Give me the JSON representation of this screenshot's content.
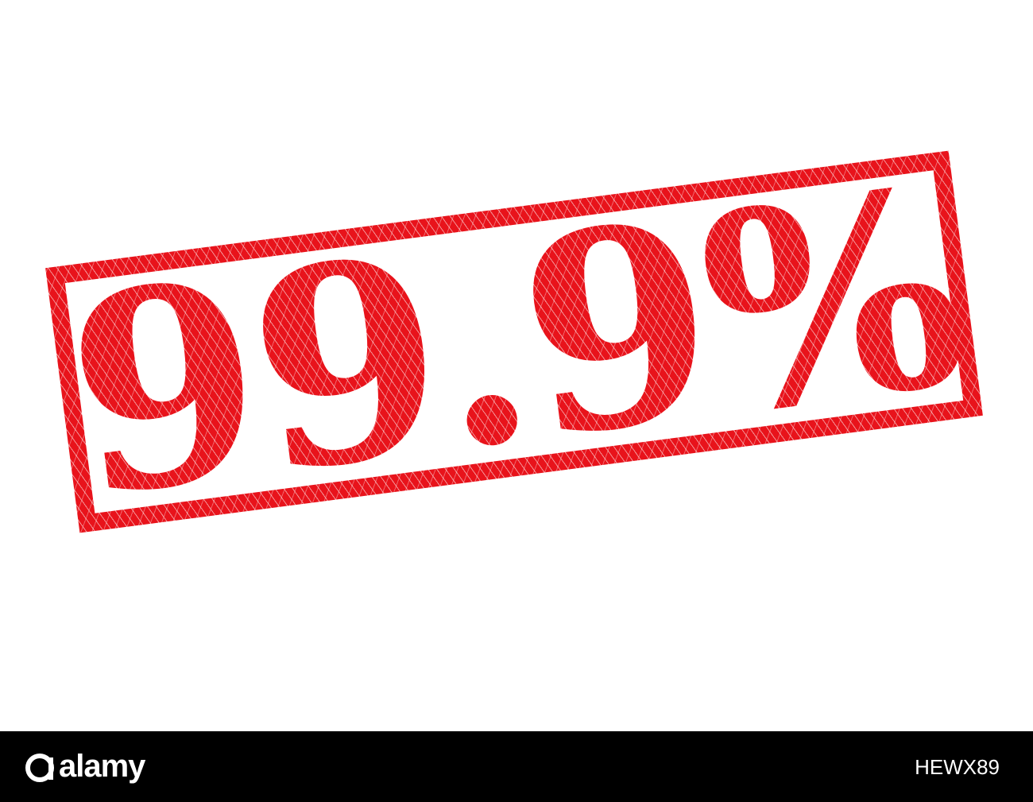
{
  "stamp": {
    "text": "99.9%",
    "color": "#e8131b"
  },
  "footer": {
    "brand": "alamy",
    "image_code": "HEWX89",
    "background": "#000000",
    "text_color": "#ffffff"
  }
}
